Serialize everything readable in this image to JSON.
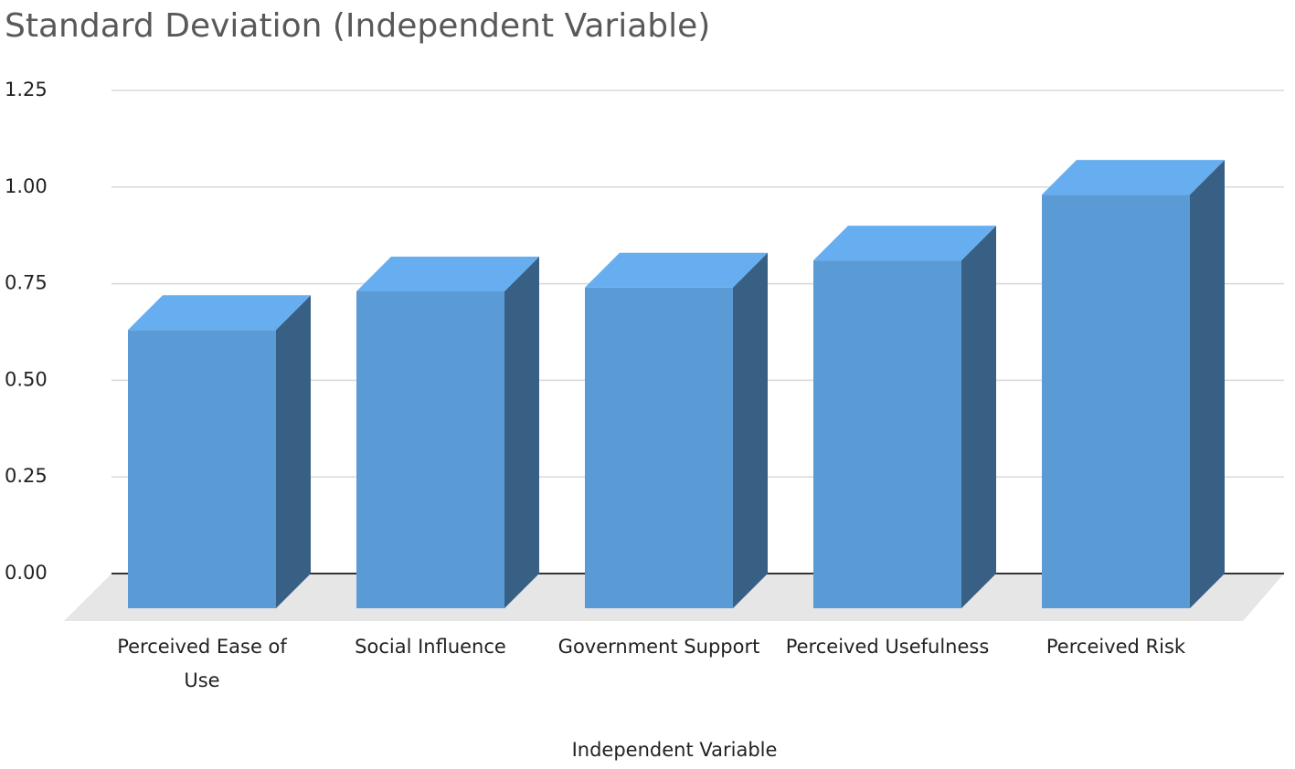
{
  "chart_data": {
    "type": "bar3d",
    "title": "Standard Deviation (Independent Variable)",
    "x_label": "Independent Variable",
    "categories": [
      "Perceived Ease of Use",
      "Social Influence",
      "Government Support",
      "Perceived Usefulness",
      "Perceived Risk"
    ],
    "values": [
      0.72,
      0.82,
      0.83,
      0.9,
      1.07
    ],
    "color": "#5b9bd5",
    "ylim": [
      0,
      1.25
    ],
    "yticks": [
      {
        "value": 0,
        "label": "0.00"
      },
      {
        "value": 0.25,
        "label": "0.25"
      },
      {
        "value": 0.5,
        "label": "0.50"
      },
      {
        "value": 0.75,
        "label": "0.75"
      },
      {
        "value": 1,
        "label": "1.00"
      },
      {
        "value": 1.25,
        "label": "1.25"
      }
    ],
    "grid": true
  }
}
